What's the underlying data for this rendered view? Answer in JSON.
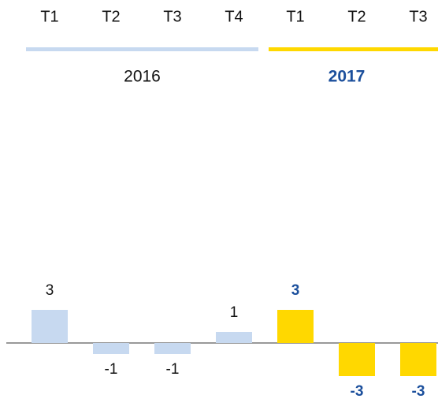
{
  "chart_data": {
    "type": "bar",
    "series": [
      {
        "name": "2016",
        "color": "#c7d9f0",
        "line_color": "#c7d9f0",
        "categories": [
          "T1",
          "T2",
          "T3",
          "T4"
        ],
        "values": [
          3,
          -1,
          -1,
          1
        ]
      },
      {
        "name": "2017",
        "color": "#ffd800",
        "line_color": "#ffd800",
        "categories": [
          "T1",
          "T2",
          "T3"
        ],
        "values": [
          3,
          -3,
          -3
        ]
      }
    ]
  }
}
